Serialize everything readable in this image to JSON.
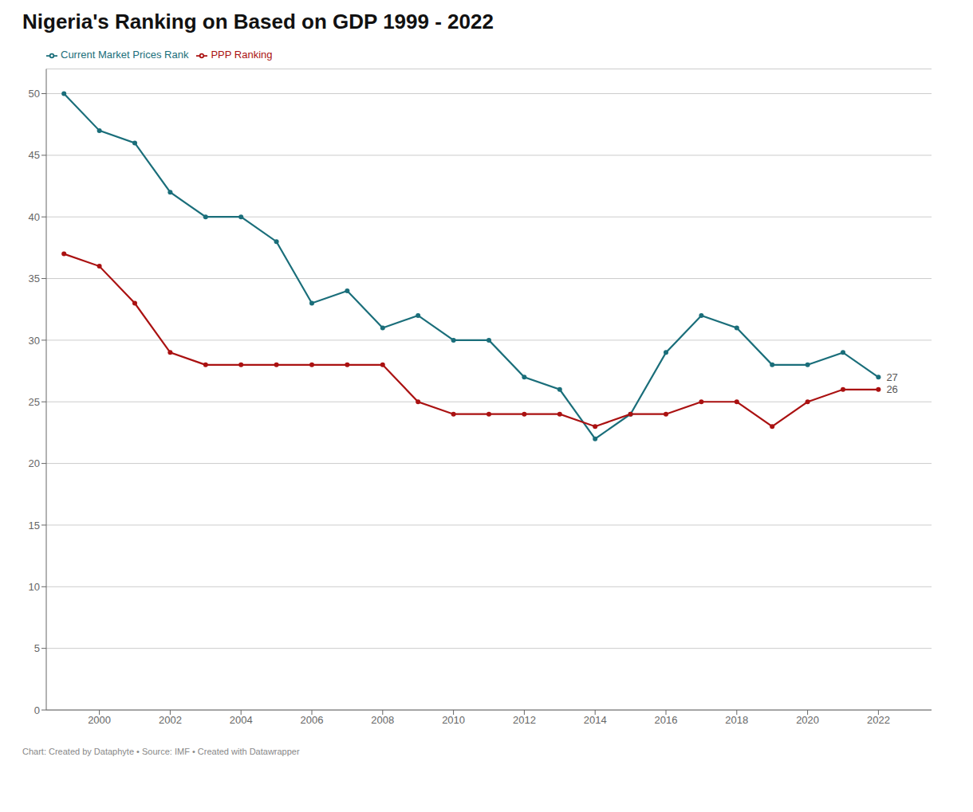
{
  "chart_data": {
    "type": "line",
    "title": "Nigeria's Ranking on Based on GDP 1999 - 2022",
    "x": [
      1999,
      2000,
      2001,
      2002,
      2003,
      2004,
      2005,
      2006,
      2007,
      2008,
      2009,
      2010,
      2011,
      2012,
      2013,
      2014,
      2015,
      2016,
      2017,
      2018,
      2019,
      2020,
      2021,
      2022
    ],
    "series": [
      {
        "name": "Current Market Prices Rank",
        "color": "#1a6e7a",
        "values": [
          50,
          47,
          46,
          42,
          40,
          40,
          38,
          33,
          34,
          31,
          32,
          30,
          30,
          27,
          26,
          22,
          24,
          29,
          32,
          31,
          28,
          28,
          29,
          27
        ]
      },
      {
        "name": "PPP Ranking",
        "color": "#aa1111",
        "values": [
          37,
          36,
          33,
          29,
          28,
          28,
          28,
          28,
          28,
          28,
          25,
          24,
          24,
          24,
          24,
          23,
          24,
          24,
          25,
          25,
          23,
          25,
          26,
          26
        ]
      }
    ],
    "xlim": [
      1998.5,
      2023.5
    ],
    "xticks": [
      2000,
      2002,
      2004,
      2006,
      2008,
      2010,
      2012,
      2014,
      2016,
      2018,
      2020,
      2022
    ],
    "ylim": [
      0,
      52
    ],
    "yticks": [
      0,
      5,
      10,
      15,
      20,
      25,
      30,
      35,
      40,
      45,
      50
    ],
    "grid": true,
    "legend": "top-left",
    "marker": "circle",
    "annotations": [
      {
        "x": 2022,
        "y": 27,
        "text": "27"
      },
      {
        "x": 2022,
        "y": 26,
        "text": "26"
      },
      {
        "text": "Chart: Created by Dataphyte • Source: IMF • Created with Datawrapper"
      }
    ]
  }
}
